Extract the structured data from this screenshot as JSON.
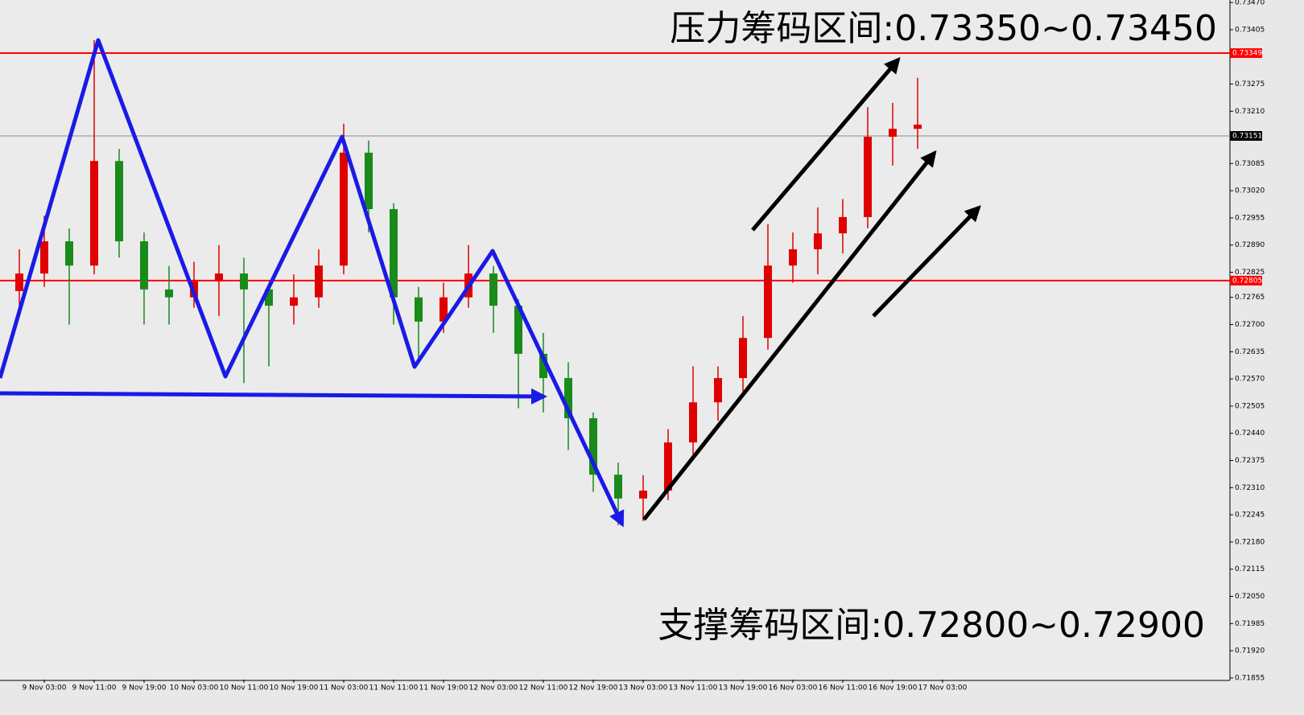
{
  "chart_data": {
    "type": "candlestick",
    "categories": [
      null,
      "9 Nov 03:00",
      null,
      "9 Nov 11:00",
      null,
      "9 Nov 19:00",
      null,
      "10 Nov 03:00",
      null,
      "10 Nov 11:00",
      null,
      "10 Nov 19:00",
      null,
      "11 Nov 03:00",
      null,
      "11 Nov 11:00",
      null,
      "11 Nov 19:00",
      null,
      "12 Nov 03:00",
      null,
      "12 Nov 11:00",
      null,
      "12 Nov 19:00",
      null,
      "13 Nov 03:00",
      null,
      "13 Nov 11:00",
      null,
      "13 Nov 19:00",
      null,
      "16 Nov 03:00",
      null,
      "16 Nov 11:00",
      null,
      "16 Nov 19:00",
      null,
      "17 Nov 03:00"
    ],
    "open": [
      0.7278,
      0.72822,
      0.72899,
      0.72841,
      0.73091,
      0.72899,
      0.72784,
      0.72765,
      0.72803,
      0.72822,
      0.72784,
      0.72745,
      0.72765,
      0.72841,
      0.73111,
      0.72976,
      0.72765,
      0.72707,
      0.72765,
      0.72822,
      0.72745,
      0.7263,
      0.72572,
      0.72476,
      0.72341,
      0.72284,
      0.72303,
      0.72418,
      0.72514,
      0.72572,
      0.72668,
      0.72841,
      0.7288,
      0.72918,
      0.72957,
      0.73149,
      0.73168,
      null
    ],
    "high": [
      0.7288,
      0.7296,
      0.7293,
      0.7338,
      0.7312,
      0.7292,
      0.7284,
      0.7285,
      0.7289,
      0.7286,
      0.728,
      0.7282,
      0.7288,
      0.7318,
      0.7314,
      0.7299,
      0.7279,
      0.728,
      0.7289,
      0.7284,
      0.7276,
      0.7268,
      0.7261,
      0.7249,
      0.7237,
      0.7234,
      0.7245,
      0.726,
      0.726,
      0.7272,
      0.7294,
      0.7292,
      0.7298,
      0.73,
      0.7322,
      0.7323,
      0.7329,
      null
    ],
    "low": [
      0.7272,
      0.7279,
      0.727,
      0.7282,
      0.7286,
      0.727,
      0.727,
      0.7274,
      0.7272,
      0.7256,
      0.726,
      0.727,
      0.7274,
      0.7282,
      0.7292,
      0.727,
      0.7262,
      0.7268,
      0.7274,
      0.7268,
      0.725,
      0.7249,
      0.724,
      0.723,
      0.7222,
      0.7223,
      0.7228,
      0.7239,
      0.7247,
      0.7254,
      0.7264,
      0.728,
      0.7282,
      0.7287,
      0.7293,
      0.7308,
      0.7312,
      null
    ],
    "close": [
      0.72822,
      0.72899,
      0.72841,
      0.73091,
      0.72899,
      0.72784,
      0.72765,
      0.72803,
      0.72822,
      0.72784,
      0.72745,
      0.72765,
      0.72841,
      0.73111,
      0.72976,
      0.72765,
      0.72707,
      0.72765,
      0.72822,
      0.72745,
      0.7263,
      0.72572,
      0.72476,
      0.72341,
      0.72284,
      0.72303,
      0.72418,
      0.72514,
      0.72572,
      0.72668,
      0.72841,
      0.7288,
      0.72918,
      0.72957,
      0.73149,
      0.73168,
      0.73178,
      null
    ],
    "up_color": "#e00000",
    "down_color": "#1a8a1a",
    "ylim": [
      0.71851,
      0.73476
    ],
    "yticks": [
      {
        "value": 0.7347,
        "label": "0.73470"
      },
      {
        "value": 0.73405,
        "label": "0.73405"
      },
      {
        "value": 0.73275,
        "label": "0.73275"
      },
      {
        "value": 0.7321,
        "label": "0.73210"
      },
      {
        "value": 0.73085,
        "label": "0.73085"
      },
      {
        "value": 0.7302,
        "label": "0.73020"
      },
      {
        "value": 0.72955,
        "label": "0.72955"
      },
      {
        "value": 0.7289,
        "label": "0.72890"
      },
      {
        "value": 0.72825,
        "label": "0.72825"
      },
      {
        "value": 0.72765,
        "label": "0.72765"
      },
      {
        "value": 0.727,
        "label": "0.72700"
      },
      {
        "value": 0.72635,
        "label": "0.72635"
      },
      {
        "value": 0.7257,
        "label": "0.72570"
      },
      {
        "value": 0.72505,
        "label": "0.72505"
      },
      {
        "value": 0.7244,
        "label": "0.72440"
      },
      {
        "value": 0.72375,
        "label": "0.72375"
      },
      {
        "value": 0.7231,
        "label": "0.72310"
      },
      {
        "value": 0.72245,
        "label": "0.72245"
      },
      {
        "value": 0.7218,
        "label": "0.72180"
      },
      {
        "value": 0.72115,
        "label": "0.72115"
      },
      {
        "value": 0.7205,
        "label": "0.72050"
      },
      {
        "value": 0.71985,
        "label": "0.71985"
      },
      {
        "value": 0.7192,
        "label": "0.71920"
      },
      {
        "value": 0.71855,
        "label": "0.71855"
      }
    ],
    "hlines": [
      {
        "value": 0.73349,
        "color": "#ff0000"
      },
      {
        "value": 0.73151,
        "color": "#888888"
      },
      {
        "value": 0.72805,
        "color": "#ff0000"
      }
    ],
    "annotations": [
      "压力筹码区间:0.73350~0.73450",
      "支撑筹码区间:0.72800~0.72900"
    ]
  }
}
